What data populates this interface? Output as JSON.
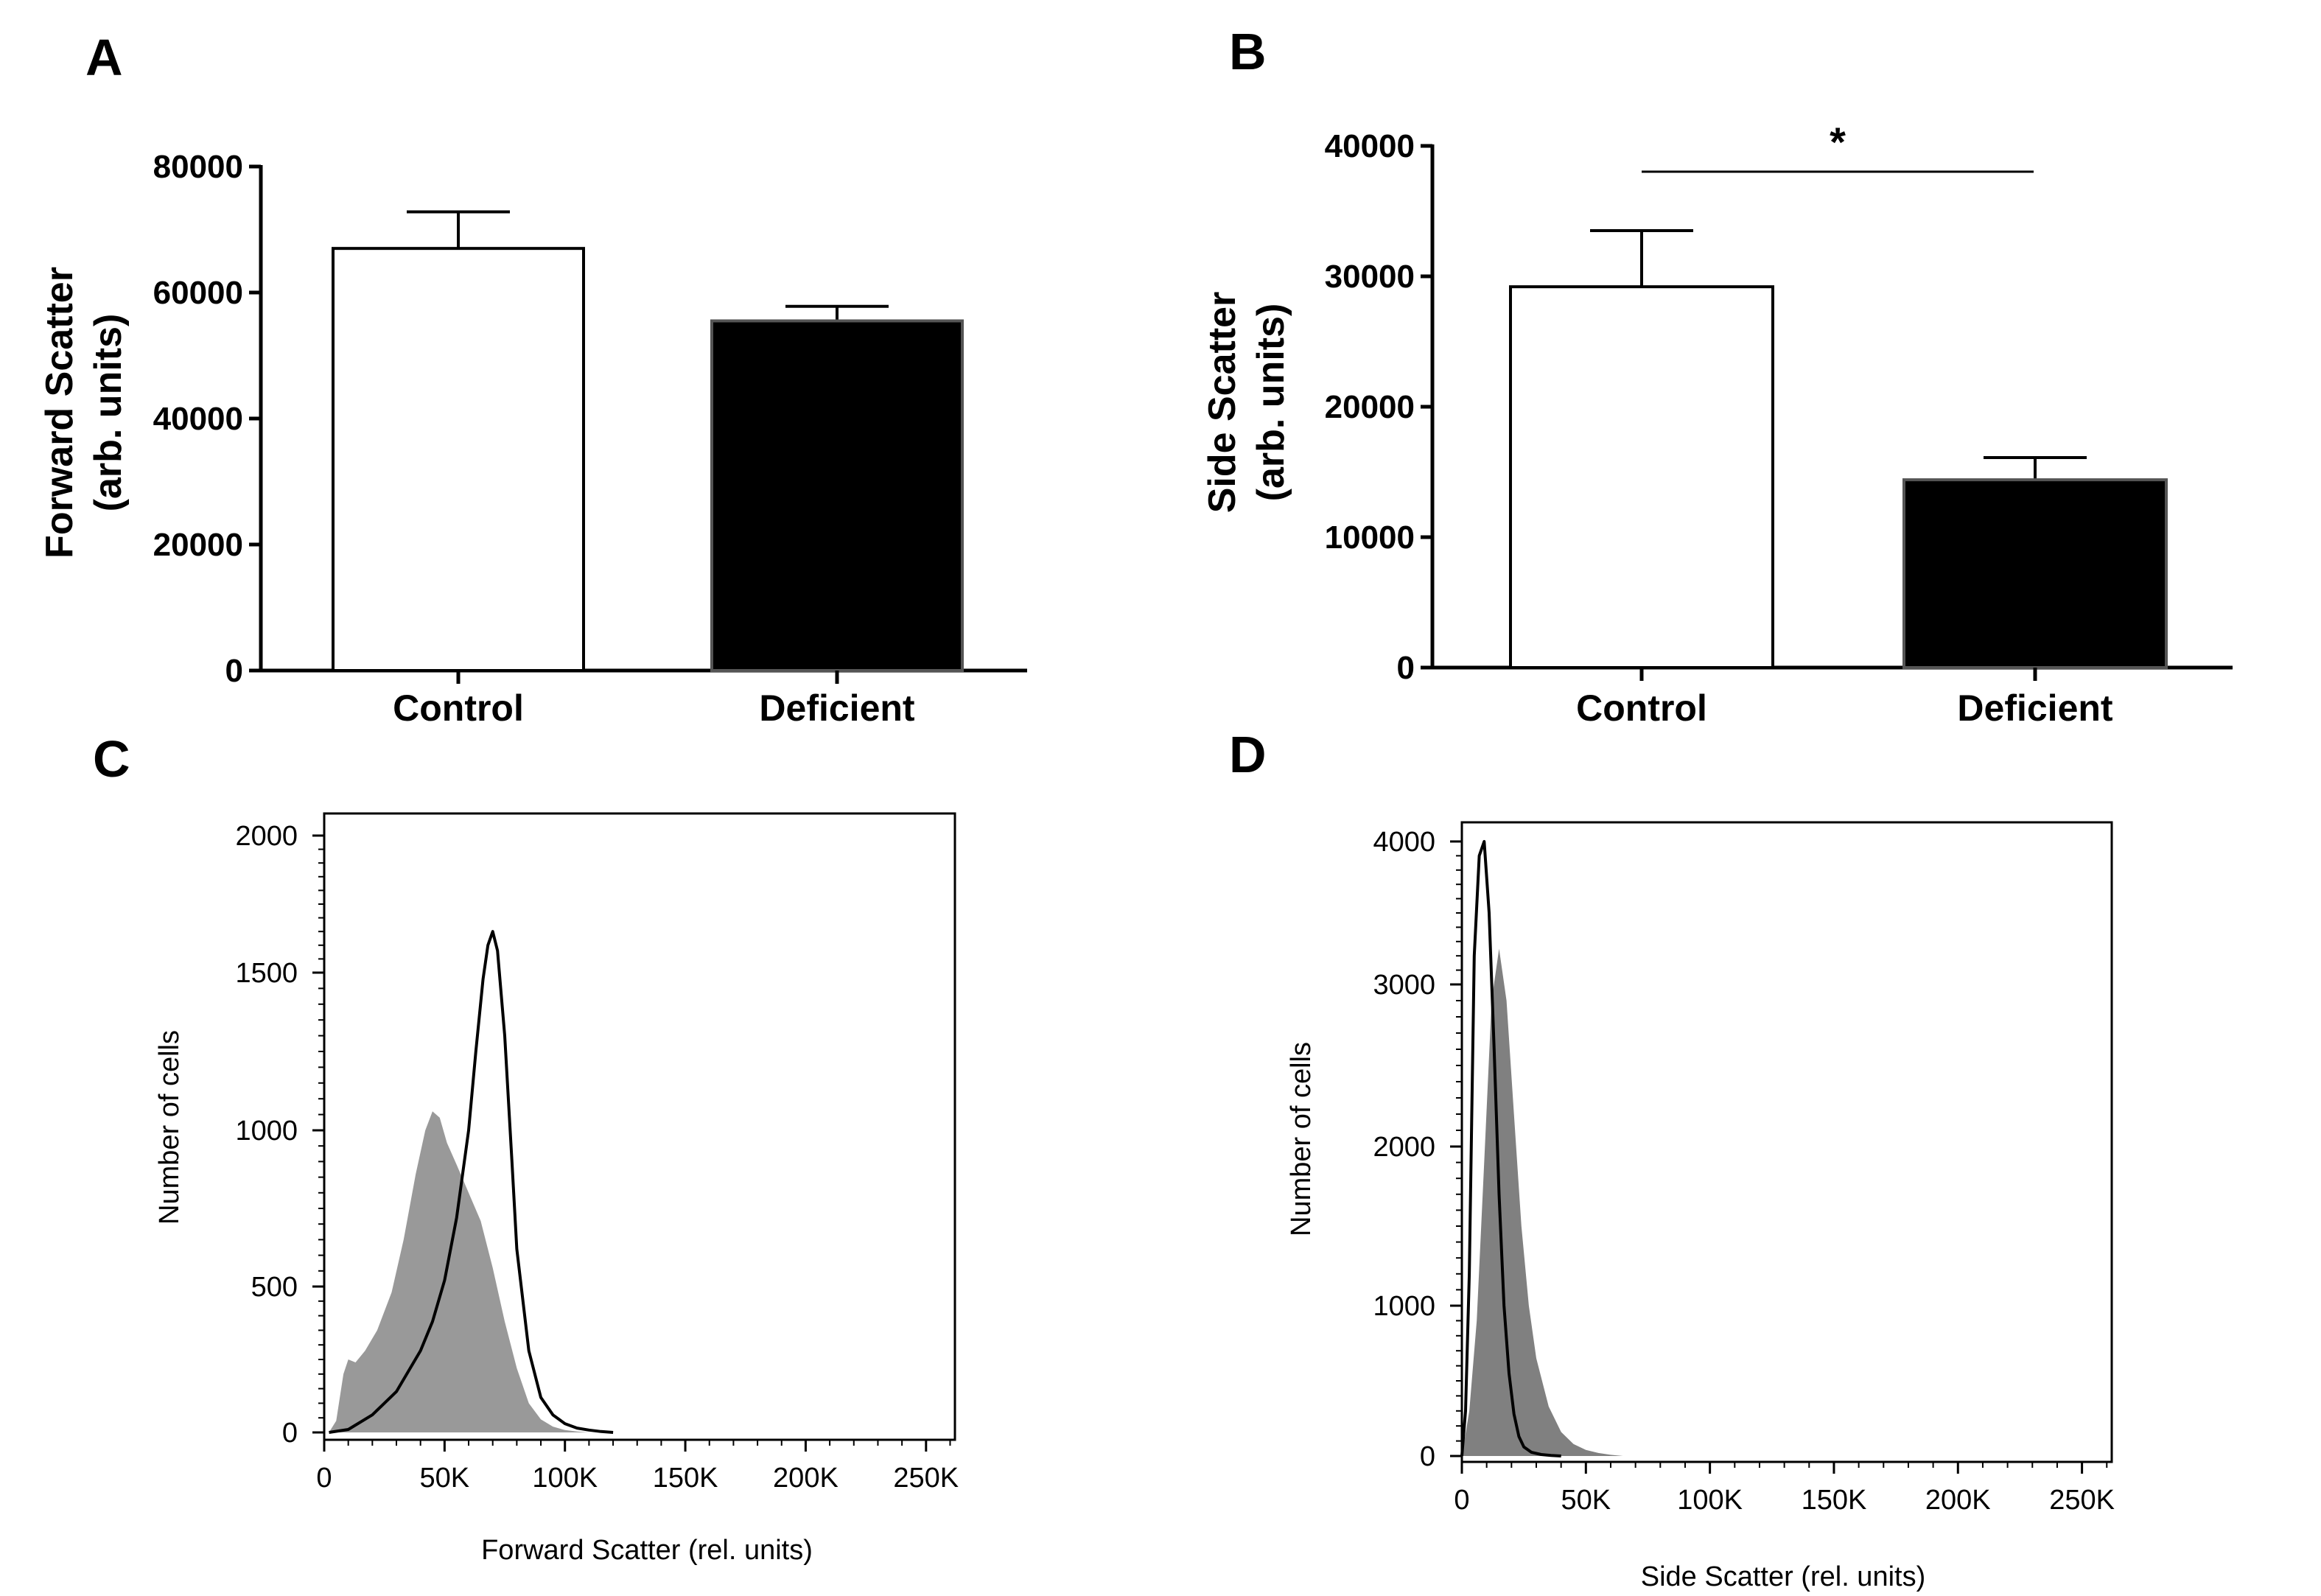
{
  "chart_data": [
    {
      "panel": "A",
      "type": "bar",
      "categories": [
        "Control",
        "Deficient"
      ],
      "values": [
        67000,
        55500
      ],
      "errors": [
        5800,
        2300
      ],
      "ylabel_lines": [
        "Forward Scatter",
        "(arb. units)"
      ],
      "ylim": [
        0,
        80000
      ],
      "yticks": [
        0,
        20000,
        40000,
        60000,
        80000
      ],
      "bar_colors": [
        "#ffffff",
        "#000000"
      ]
    },
    {
      "panel": "B",
      "type": "bar",
      "categories": [
        "Control",
        "Deficient"
      ],
      "values": [
        29200,
        14400
      ],
      "errors": [
        4300,
        1700
      ],
      "ylabel_lines": [
        "Side Scatter",
        "(arb. units)"
      ],
      "ylim": [
        0,
        40000
      ],
      "yticks": [
        0,
        10000,
        20000,
        30000,
        40000
      ],
      "bar_colors": [
        "#ffffff",
        "#000000"
      ],
      "annotation": "*"
    },
    {
      "panel": "C",
      "type": "area",
      "xlabel": "Forward Scatter (rel. units)",
      "ylabel": "Number of cells",
      "xlim": [
        0,
        262000
      ],
      "ylim": [
        0,
        2000
      ],
      "xticks": [
        0,
        50000,
        100000,
        150000,
        200000,
        250000
      ],
      "xtick_labels": [
        "0",
        "50K",
        "100K",
        "150K",
        "200K",
        "250K"
      ],
      "yticks": [
        0,
        500,
        1000,
        1500,
        2000
      ],
      "ytick_labels": [
        "0",
        "500",
        "1000",
        "1500",
        "2000"
      ],
      "series": [
        {
          "style": "filled",
          "color": "#999999",
          "x": [
            2000,
            5000,
            8000,
            10000,
            13000,
            17000,
            22000,
            28000,
            33000,
            38000,
            42000,
            45000,
            48000,
            51000,
            55000,
            60000,
            65000,
            70000,
            75000,
            80000,
            85000,
            90000,
            95000,
            100000,
            105000,
            110000
          ],
          "y": [
            0,
            40,
            200,
            250,
            240,
            280,
            350,
            480,
            650,
            860,
            1000,
            1060,
            1040,
            960,
            890,
            800,
            710,
            560,
            380,
            220,
            100,
            45,
            20,
            8,
            3,
            0
          ]
        },
        {
          "style": "line",
          "color": "#000000",
          "x": [
            2000,
            10000,
            20000,
            30000,
            40000,
            45000,
            50000,
            55000,
            60000,
            63000,
            66000,
            68000,
            70000,
            72000,
            75000,
            78000,
            80000,
            85000,
            90000,
            95000,
            100000,
            105000,
            110000,
            115000,
            120000
          ],
          "y": [
            0,
            10,
            60,
            140,
            280,
            380,
            520,
            720,
            1000,
            1250,
            1480,
            1600,
            1650,
            1580,
            1300,
            900,
            620,
            280,
            120,
            60,
            30,
            15,
            8,
            3,
            0
          ]
        }
      ]
    },
    {
      "panel": "D",
      "type": "area",
      "xlabel": "Side Scatter (rel. units)",
      "ylabel": "Number of cells",
      "xlim": [
        0,
        262000
      ],
      "ylim": [
        0,
        4000
      ],
      "xticks": [
        0,
        50000,
        100000,
        150000,
        200000,
        250000
      ],
      "xtick_labels": [
        "0",
        "50K",
        "100K",
        "150K",
        "200K",
        "250K"
      ],
      "yticks": [
        0,
        1000,
        2000,
        3000,
        4000
      ],
      "ytick_labels": [
        "0",
        "1000",
        "2000",
        "3000",
        "4000"
      ],
      "series": [
        {
          "style": "filled",
          "color": "#808080",
          "x": [
            0,
            3000,
            6000,
            9000,
            12000,
            15000,
            18000,
            21000,
            24000,
            27000,
            30000,
            35000,
            40000,
            45000,
            50000,
            55000,
            60000,
            65000
          ],
          "y": [
            0,
            300,
            900,
            1900,
            2900,
            3250,
            2900,
            2200,
            1500,
            1000,
            650,
            330,
            160,
            80,
            40,
            20,
            8,
            0
          ]
        },
        {
          "style": "line",
          "color": "#000000",
          "x": [
            0,
            1500,
            3000,
            5000,
            7000,
            9000,
            11000,
            13000,
            15000,
            17000,
            19000,
            21000,
            23000,
            25000,
            28000,
            32000,
            36000,
            40000
          ],
          "y": [
            0,
            300,
            1200,
            3200,
            3900,
            4000,
            3500,
            2600,
            1700,
            1000,
            550,
            280,
            130,
            60,
            25,
            10,
            4,
            0
          ]
        }
      ]
    }
  ]
}
